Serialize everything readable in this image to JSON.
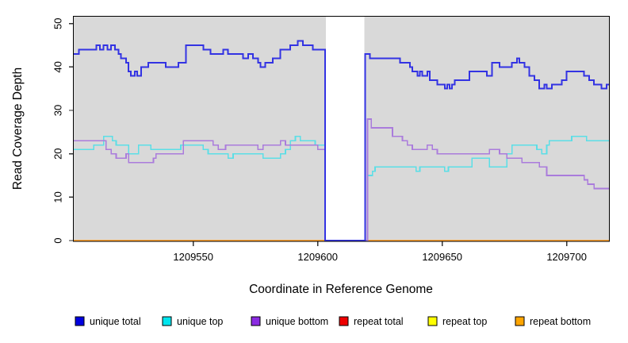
{
  "figure": {
    "kind": "R-style step plot of sequencing read coverage",
    "background": "#FFFFFF",
    "plot_background": "#D9D9D9",
    "box_color": "#000000",
    "tick_color": "#333333"
  },
  "y_axis": {
    "label": "Read Coverage Depth",
    "tick_labels": [
      "0",
      "10",
      "20",
      "30",
      "40",
      "50"
    ]
  },
  "x_axis": {
    "label": "Coordinate in Reference Genome",
    "tick_labels": [
      "1209550",
      "1209600",
      "1209650",
      "1209700"
    ]
  },
  "legend": {
    "position": "bottom",
    "swatch_border": "#000000",
    "items": [
      {
        "label": "unique total",
        "color": "#0000E0"
      },
      {
        "label": "unique top",
        "color": "#00E5EE"
      },
      {
        "label": "unique bottom",
        "color": "#8B2BE2"
      },
      {
        "label": "repeat total",
        "color": "#EE0000"
      },
      {
        "label": "repeat top",
        "color": "#FFFF00"
      },
      {
        "label": "repeat bottom",
        "color": "#FFA500"
      }
    ]
  },
  "chart_data": {
    "type": "line",
    "style": "step",
    "title": "",
    "xlabel": "Coordinate in Reference Genome",
    "ylabel": "Read Coverage Depth",
    "xlim": [
      1209502,
      1209717
    ],
    "ylim": [
      0,
      51.6
    ],
    "x_ticks": [
      1209550,
      1209600,
      1209650,
      1209700
    ],
    "y_ticks": [
      0,
      10,
      20,
      30,
      40,
      50
    ],
    "grid": false,
    "legend_position": "bottom",
    "no_data_region": {
      "start": 1209603,
      "end": 1209619,
      "color": "#FFFFFF"
    },
    "series": [
      {
        "name": "unique total",
        "line_color": "#3333E3",
        "legend_color": "#0000E0",
        "line_width": 2,
        "points": [
          [
            1209502,
            43
          ],
          [
            1209504,
            44
          ],
          [
            1209511,
            45
          ],
          [
            1209512.5,
            44
          ],
          [
            1209514,
            45
          ],
          [
            1209515.5,
            44
          ],
          [
            1209517,
            45
          ],
          [
            1209518.5,
            44
          ],
          [
            1209520,
            43
          ],
          [
            1209521,
            42
          ],
          [
            1209523,
            41
          ],
          [
            1209524,
            39
          ],
          [
            1209525,
            38
          ],
          [
            1209526.5,
            39
          ],
          [
            1209527.5,
            38
          ],
          [
            1209529,
            40
          ],
          [
            1209532,
            41
          ],
          [
            1209539,
            40
          ],
          [
            1209544,
            41
          ],
          [
            1209547,
            45
          ],
          [
            1209554,
            44
          ],
          [
            1209557,
            43
          ],
          [
            1209562,
            44
          ],
          [
            1209564,
            43
          ],
          [
            1209570,
            42
          ],
          [
            1209572,
            43
          ],
          [
            1209574,
            42
          ],
          [
            1209576,
            41
          ],
          [
            1209577,
            40
          ],
          [
            1209579,
            41
          ],
          [
            1209582,
            42
          ],
          [
            1209585,
            44
          ],
          [
            1209589,
            45
          ],
          [
            1209592,
            46
          ],
          [
            1209594,
            45
          ],
          [
            1209598,
            44
          ],
          [
            1209603,
            0
          ],
          [
            1209619,
            43
          ],
          [
            1209621,
            42
          ],
          [
            1209633,
            41
          ],
          [
            1209637,
            40
          ],
          [
            1209638,
            39
          ],
          [
            1209640,
            38
          ],
          [
            1209641,
            39
          ],
          [
            1209642,
            38
          ],
          [
            1209644,
            39
          ],
          [
            1209645,
            37
          ],
          [
            1209648,
            36
          ],
          [
            1209651,
            35
          ],
          [
            1209652,
            36
          ],
          [
            1209653,
            35
          ],
          [
            1209654,
            36
          ],
          [
            1209655,
            37
          ],
          [
            1209661,
            39
          ],
          [
            1209666,
            39
          ],
          [
            1209668,
            38
          ],
          [
            1209670,
            41
          ],
          [
            1209673,
            40
          ],
          [
            1209678,
            41
          ],
          [
            1209680,
            42
          ],
          [
            1209681,
            41
          ],
          [
            1209683,
            40
          ],
          [
            1209685,
            38
          ],
          [
            1209687,
            37
          ],
          [
            1209689,
            35
          ],
          [
            1209691,
            36
          ],
          [
            1209692,
            35
          ],
          [
            1209694,
            36
          ],
          [
            1209698,
            37
          ],
          [
            1209700,
            39
          ],
          [
            1209707,
            38
          ],
          [
            1209709,
            37
          ],
          [
            1209711,
            36
          ],
          [
            1209714,
            35
          ],
          [
            1209716,
            36
          ]
        ]
      },
      {
        "name": "unique top",
        "line_color": "#5CDEE6",
        "legend_color": "#00E5EE",
        "line_width": 1.7,
        "points": [
          [
            1209502,
            21
          ],
          [
            1209510,
            22
          ],
          [
            1209514,
            24
          ],
          [
            1209517.5,
            23
          ],
          [
            1209519,
            22
          ],
          [
            1209524,
            20
          ],
          [
            1209528,
            22
          ],
          [
            1209533,
            21
          ],
          [
            1209545,
            22
          ],
          [
            1209554,
            21
          ],
          [
            1209556,
            20
          ],
          [
            1209564,
            19
          ],
          [
            1209566,
            20
          ],
          [
            1209578,
            19
          ],
          [
            1209585,
            20
          ],
          [
            1209587,
            21
          ],
          [
            1209589,
            23
          ],
          [
            1209591,
            24
          ],
          [
            1209593,
            23
          ],
          [
            1209599,
            22
          ],
          [
            1209603,
            0
          ],
          [
            1209620,
            15
          ],
          [
            1209622,
            16
          ],
          [
            1209623,
            17
          ],
          [
            1209638,
            17
          ],
          [
            1209639.5,
            16
          ],
          [
            1209641,
            17
          ],
          [
            1209651,
            16
          ],
          [
            1209652.5,
            17
          ],
          [
            1209662,
            19
          ],
          [
            1209669,
            17
          ],
          [
            1209676,
            20
          ],
          [
            1209678,
            22
          ],
          [
            1209688,
            21
          ],
          [
            1209690,
            20
          ],
          [
            1209692,
            22
          ],
          [
            1209693,
            23
          ],
          [
            1209702,
            24
          ],
          [
            1209708,
            23
          ]
        ]
      },
      {
        "name": "unique bottom",
        "line_color": "#AA7CDC",
        "legend_color": "#8B2BE2",
        "line_width": 1.7,
        "points": [
          [
            1209502,
            23
          ],
          [
            1209515,
            21
          ],
          [
            1209517,
            20
          ],
          [
            1209519,
            19
          ],
          [
            1209523,
            20
          ],
          [
            1209524,
            18
          ],
          [
            1209534,
            19
          ],
          [
            1209535,
            20
          ],
          [
            1209546,
            23
          ],
          [
            1209558,
            22
          ],
          [
            1209560,
            21
          ],
          [
            1209563,
            22
          ],
          [
            1209576,
            21
          ],
          [
            1209578,
            22
          ],
          [
            1209585,
            23
          ],
          [
            1209587,
            22
          ],
          [
            1209600,
            21
          ],
          [
            1209603,
            0
          ],
          [
            1209620,
            28
          ],
          [
            1209621.5,
            26
          ],
          [
            1209630,
            24
          ],
          [
            1209634,
            23
          ],
          [
            1209636,
            22
          ],
          [
            1209638,
            21
          ],
          [
            1209644,
            22
          ],
          [
            1209646,
            21
          ],
          [
            1209648,
            20
          ],
          [
            1209669,
            21
          ],
          [
            1209673,
            20
          ],
          [
            1209676,
            19
          ],
          [
            1209682,
            18
          ],
          [
            1209689,
            17
          ],
          [
            1209692,
            15
          ],
          [
            1209707,
            14
          ],
          [
            1209708.5,
            13
          ],
          [
            1209711,
            12
          ]
        ]
      },
      {
        "name": "repeat total",
        "line_color": "#DD0000",
        "legend_color": "#EE0000",
        "line_width": 2,
        "points": [
          [
            1209502,
            0
          ]
        ]
      },
      {
        "name": "repeat top",
        "line_color": "#FFFF00",
        "legend_color": "#FFFF00",
        "line_width": 2,
        "points": [
          [
            1209502,
            0
          ]
        ]
      },
      {
        "name": "repeat bottom",
        "line_color": "#FFA432",
        "legend_color": "#FFA500",
        "line_width": 2,
        "points": [
          [
            1209502,
            0
          ]
        ]
      }
    ]
  }
}
